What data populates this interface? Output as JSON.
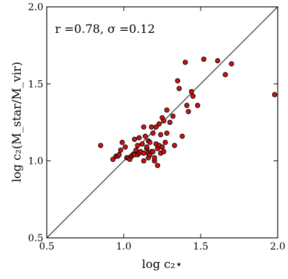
{
  "chart_data": {
    "type": "scatter",
    "xlabel": "log c₂⋆",
    "ylabel": "log c₂(M_star/M_vir)",
    "annotation": "r =0.78,  σ =0.12",
    "xlim": [
      0.5,
      2.0
    ],
    "ylim": [
      0.5,
      2.0
    ],
    "xticks": [
      "0.5",
      "1.0",
      "1.5",
      "2.0"
    ],
    "yticks": [
      "0.5",
      "1.0",
      "1.5",
      "2.0"
    ],
    "identity_line": true,
    "point_color": "#cc1111",
    "series": [
      {
        "x": [
          0.85,
          0.93,
          0.95,
          0.96,
          0.97,
          0.98,
          0.99,
          1.01,
          1.02,
          1.03,
          1.04,
          1.05,
          1.06,
          1.07,
          1.07,
          1.08,
          1.09,
          1.09,
          1.1,
          1.1,
          1.11,
          1.12,
          1.13,
          1.13,
          1.13,
          1.14,
          1.15,
          1.15,
          1.16,
          1.16,
          1.16,
          1.17,
          1.17,
          1.18,
          1.18,
          1.19,
          1.19,
          1.2,
          1.2,
          1.21,
          1.21,
          1.22,
          1.22,
          1.23,
          1.23,
          1.24,
          1.24,
          1.25,
          1.25,
          1.26,
          1.26,
          1.27,
          1.28,
          1.28,
          1.3,
          1.32,
          1.33,
          1.35,
          1.36,
          1.38,
          1.4,
          1.41,
          1.42,
          1.44,
          1.45,
          1.48,
          1.52,
          1.61,
          1.66,
          1.7,
          1.98
        ],
        "y": [
          1.1,
          1.01,
          1.03,
          1.03,
          1.04,
          1.07,
          1.12,
          1.09,
          1.02,
          1.02,
          1.01,
          1.03,
          1.04,
          1.14,
          1.04,
          1.07,
          1.04,
          1.1,
          1.05,
          1.15,
          1.06,
          1.11,
          1.05,
          1.22,
          1.0,
          1.16,
          1.08,
          1.09,
          1.02,
          1.05,
          1.13,
          1.04,
          1.12,
          1.06,
          1.22,
          1.06,
          1.18,
          1.0,
          1.02,
          1.11,
          1.22,
          0.97,
          1.08,
          1.1,
          1.24,
          1.05,
          1.17,
          1.09,
          1.28,
          1.06,
          1.26,
          1.12,
          1.18,
          1.33,
          1.25,
          1.29,
          1.1,
          1.52,
          1.47,
          1.16,
          1.64,
          1.36,
          1.32,
          1.45,
          1.42,
          1.36,
          1.66,
          1.65,
          1.56,
          1.63,
          1.43
        ]
      }
    ]
  }
}
